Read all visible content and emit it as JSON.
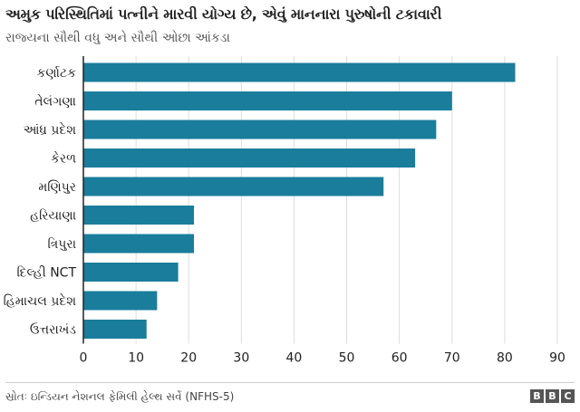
{
  "header": {
    "title": "અમુક પરિસ્થિતિમાં પત્નીને મારવી યોગ્ય છે, એવું માનનારા પુરુષોની ટકાવારી",
    "subtitle": "રાજ્યના સૌથી વધુ અને સૌથી ઓછા આંકડા"
  },
  "footer": {
    "source": "સ્રોતઃ ઇન્ડિયન નેશનલ ફેમિલી હેલ્થ સર્વે (NFHS-5)",
    "logo_letters": [
      "B",
      "B",
      "C"
    ]
  },
  "colors": {
    "bar": "#1a7d9b",
    "grid": "#dddddd",
    "axis": "#222222"
  },
  "chart_data": {
    "type": "bar",
    "orientation": "horizontal",
    "title": "અમુક પરિસ્થિતિમાં પત્નીને મારવી યોગ્ય છે, એવું માનનારા પુરુષોની ટકાવારી",
    "subtitle": "રાજ્યના સૌથી વધુ અને સૌથી ઓછા આંકડા",
    "categories": [
      "કર્ણાટક",
      "તેલંગણા",
      "આંધ્ર પ્રદેશ",
      "કેરળ",
      "મણિપુર",
      "હરિયાણા",
      "ત્રિપુરા",
      "દિલ્હી NCT",
      "હિમાચલ પ્રદેશ",
      "ઉત્તરાખંડ"
    ],
    "values": [
      82,
      70,
      67,
      63,
      57,
      21,
      21,
      18,
      14,
      12
    ],
    "xlim": [
      0,
      90
    ],
    "xticks": [
      0,
      10,
      20,
      30,
      40,
      50,
      60,
      70,
      80,
      90
    ],
    "grid": "vertical",
    "xlabel": "",
    "ylabel": ""
  }
}
